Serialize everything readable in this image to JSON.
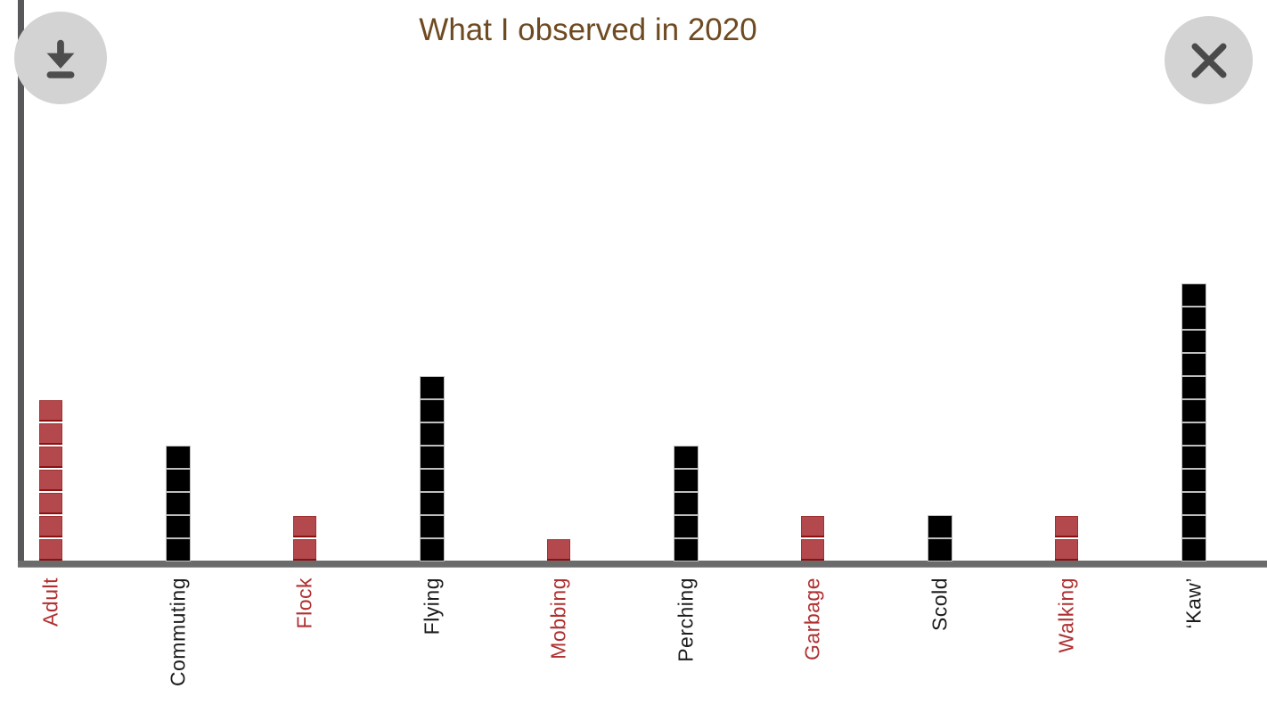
{
  "header": {
    "title": "What I observed in 2020"
  },
  "controls": {
    "download_button": {
      "icon": "download-icon"
    },
    "close_button": {
      "icon": "close-icon"
    }
  },
  "chart_data": {
    "type": "bar",
    "subtype": "unit-square-stacks",
    "title": "What I observed in 2020",
    "xlabel": "",
    "ylabel": "",
    "legend": false,
    "grid": false,
    "categories": [
      "Adult",
      "Commuting",
      "Flock",
      "Flying",
      "Mobbing",
      "Perching",
      "Garbage",
      "Scold",
      "Walking",
      "‘Kaw’"
    ],
    "values": [
      7,
      5,
      2,
      8,
      1,
      5,
      2,
      2,
      2,
      12
    ],
    "bar_color_names": [
      "red",
      "black",
      "red",
      "black",
      "red",
      "black",
      "red",
      "black",
      "red",
      "black"
    ],
    "ylim": [
      0,
      12
    ],
    "colors": {
      "red_square": "#b3494c",
      "red_square_border": "#8b1111",
      "red_label": "#b03030",
      "black_square": "#000000",
      "black_label": "#1c1c1c",
      "title": "#6e4a21",
      "axis": "#6b6b6b"
    }
  }
}
